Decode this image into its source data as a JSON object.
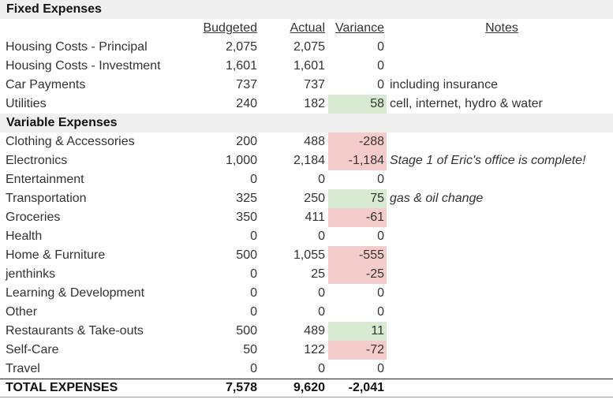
{
  "fixed": {
    "title": "Fixed Expenses",
    "headers": {
      "budgeted": "Budgeted",
      "actual": "Actual",
      "variance": "Variance",
      "notes": "Notes"
    },
    "rows": [
      {
        "label": "Housing Costs - Principal",
        "budgeted": "2,075",
        "actual": "2,075",
        "variance": "0",
        "notes": "",
        "status": ""
      },
      {
        "label": "Housing Costs - Investment",
        "budgeted": "1,601",
        "actual": "1,601",
        "variance": "0",
        "notes": "",
        "status": ""
      },
      {
        "label": "Car Payments",
        "budgeted": "737",
        "actual": "737",
        "variance": "0",
        "notes": "including insurance",
        "status": ""
      },
      {
        "label": "Utilities",
        "budgeted": "240",
        "actual": "182",
        "variance": "58",
        "notes": "cell, internet, hydro & water",
        "status": "positive"
      }
    ]
  },
  "variable": {
    "title": "Variable Expenses",
    "rows": [
      {
        "label": "Clothing & Accessories",
        "budgeted": "200",
        "actual": "488",
        "variance": "-288",
        "notes": "",
        "status": "negative"
      },
      {
        "label": "Electronics",
        "budgeted": "1,000",
        "actual": "2,184",
        "variance": "-1,184",
        "notes": "Stage 1 of Eric's office is complete!",
        "status": "negative",
        "notes_italic": true
      },
      {
        "label": "Entertainment",
        "budgeted": "0",
        "actual": "0",
        "variance": "0",
        "notes": "",
        "status": ""
      },
      {
        "label": "Transportation",
        "budgeted": "325",
        "actual": "250",
        "variance": "75",
        "notes": "gas & oil change",
        "status": "positive",
        "notes_italic": true
      },
      {
        "label": "Groceries",
        "budgeted": "350",
        "actual": "411",
        "variance": "-61",
        "notes": "",
        "status": "negative"
      },
      {
        "label": "Health",
        "budgeted": "0",
        "actual": "0",
        "variance": "0",
        "notes": "",
        "status": ""
      },
      {
        "label": "Home & Furniture",
        "budgeted": "500",
        "actual": "1,055",
        "variance": "-555",
        "notes": "",
        "status": "negative"
      },
      {
        "label": "jenthinks",
        "budgeted": "0",
        "actual": "25",
        "variance": "-25",
        "notes": "",
        "status": "negative"
      },
      {
        "label": "Learning & Development",
        "budgeted": "0",
        "actual": "0",
        "variance": "0",
        "notes": "",
        "status": ""
      },
      {
        "label": "Other",
        "budgeted": "0",
        "actual": "0",
        "variance": "0",
        "notes": "",
        "status": ""
      },
      {
        "label": "Restaurants & Take-outs",
        "budgeted": "500",
        "actual": "489",
        "variance": "11",
        "notes": "",
        "status": "positive"
      },
      {
        "label": "Self-Care",
        "budgeted": "50",
        "actual": "122",
        "variance": "-72",
        "notes": "",
        "status": "negative"
      },
      {
        "label": "Travel",
        "budgeted": "0",
        "actual": "0",
        "variance": "0",
        "notes": "",
        "status": ""
      }
    ]
  },
  "total": {
    "label": "TOTAL EXPENSES",
    "budgeted": "7,578",
    "actual": "9,620",
    "variance": "-2,041"
  },
  "colors": {
    "positive": "#d9ead3",
    "negative": "#f4cccc",
    "section_bg": "#efefef"
  }
}
